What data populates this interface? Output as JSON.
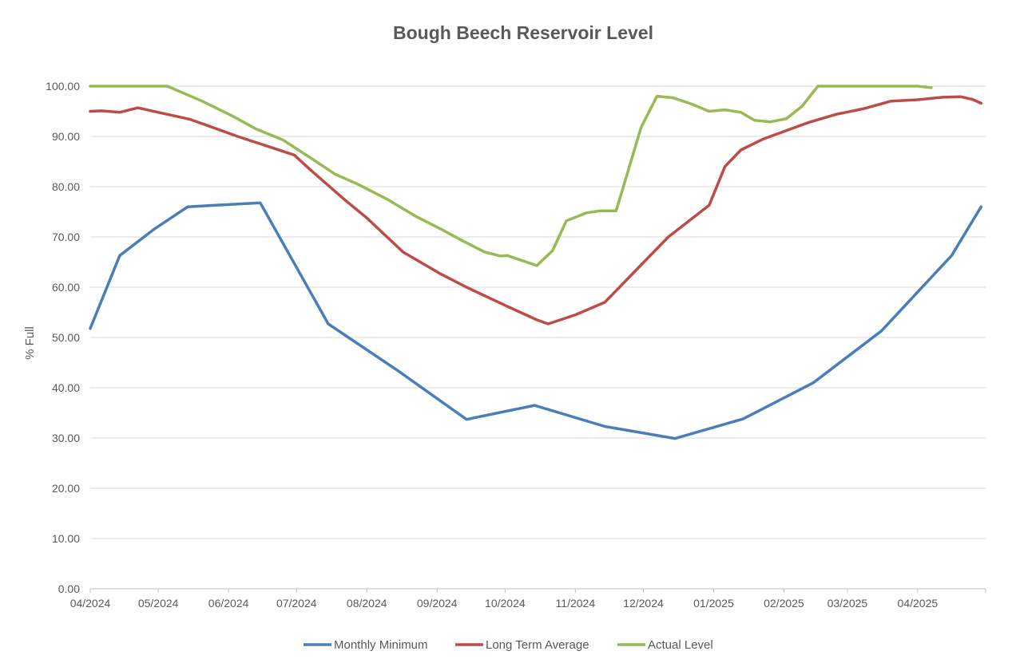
{
  "chart_data": {
    "type": "line",
    "title": "Bough Beech Reservoir Level",
    "xlabel": "",
    "ylabel": "% Full",
    "ylim": [
      0,
      100
    ],
    "yticks": [
      "0.00",
      "10.00",
      "20.00",
      "30.00",
      "40.00",
      "50.00",
      "60.00",
      "70.00",
      "80.00",
      "90.00",
      "100.00"
    ],
    "xlim": [
      "2024-04-01",
      "2025-05-01"
    ],
    "xticks": [
      {
        "label": "04/2024",
        "date": "2024-04-01"
      },
      {
        "label": "05/2024",
        "date": "2024-05-01"
      },
      {
        "label": "06/2024",
        "date": "2024-06-01"
      },
      {
        "label": "07/2024",
        "date": "2024-07-01"
      },
      {
        "label": "08/2024",
        "date": "2024-08-01"
      },
      {
        "label": "09/2024",
        "date": "2024-09-01"
      },
      {
        "label": "10/2024",
        "date": "2024-10-01"
      },
      {
        "label": "11/2024",
        "date": "2024-11-01"
      },
      {
        "label": "12/2024",
        "date": "2024-12-01"
      },
      {
        "label": "01/2025",
        "date": "2025-01-01"
      },
      {
        "label": "02/2025",
        "date": "2025-02-01"
      },
      {
        "label": "03/2025",
        "date": "2025-03-01"
      },
      {
        "label": "04/2025",
        "date": "2025-04-01"
      }
    ],
    "grid": true,
    "legend_position": "bottom",
    "series": [
      {
        "name": "Monthly Minimum",
        "color": "#4a7ebb",
        "points": [
          [
            "2024-04-01",
            51.8
          ],
          [
            "2024-04-14",
            66.3
          ],
          [
            "2024-04-29",
            71.5
          ],
          [
            "2024-05-14",
            76.0
          ],
          [
            "2024-06-15",
            76.8
          ],
          [
            "2024-07-15",
            52.7
          ],
          [
            "2024-08-15",
            43.3
          ],
          [
            "2024-09-14",
            33.7
          ],
          [
            "2024-10-14",
            36.5
          ],
          [
            "2024-11-14",
            32.3
          ],
          [
            "2024-12-15",
            29.9
          ],
          [
            "2025-01-14",
            33.8
          ],
          [
            "2025-02-14",
            41.0
          ],
          [
            "2025-03-16",
            51.3
          ],
          [
            "2025-04-16",
            66.3
          ],
          [
            "2025-04-29",
            76.0
          ]
        ]
      },
      {
        "name": "Long Term Average",
        "color": "#be4b48",
        "points": [
          [
            "2024-04-01",
            95.0
          ],
          [
            "2024-04-06",
            95.1
          ],
          [
            "2024-04-14",
            94.8
          ],
          [
            "2024-04-22",
            95.7
          ],
          [
            "2024-05-01",
            94.8
          ],
          [
            "2024-05-15",
            93.4
          ],
          [
            "2024-05-20",
            92.6
          ],
          [
            "2024-06-05",
            90.0
          ],
          [
            "2024-06-22",
            87.5
          ],
          [
            "2024-06-30",
            86.3
          ],
          [
            "2024-07-08",
            83.0
          ],
          [
            "2024-07-22",
            77.5
          ],
          [
            "2024-08-01",
            73.8
          ],
          [
            "2024-08-17",
            67.0
          ],
          [
            "2024-09-02",
            62.8
          ],
          [
            "2024-09-14",
            60.0
          ],
          [
            "2024-10-01",
            56.4
          ],
          [
            "2024-10-15",
            53.5
          ],
          [
            "2024-10-20",
            52.7
          ],
          [
            "2024-11-01",
            54.5
          ],
          [
            "2024-11-14",
            57.0
          ],
          [
            "2024-11-28",
            63.5
          ],
          [
            "2024-12-12",
            70.0
          ],
          [
            "2024-12-30",
            76.3
          ],
          [
            "2025-01-06",
            84.0
          ],
          [
            "2025-01-13",
            87.3
          ],
          [
            "2025-01-23",
            89.5
          ],
          [
            "2025-02-12",
            92.8
          ],
          [
            "2025-02-24",
            94.4
          ],
          [
            "2025-03-08",
            95.5
          ],
          [
            "2025-03-20",
            97.0
          ],
          [
            "2025-04-01",
            97.3
          ],
          [
            "2025-04-12",
            97.8
          ],
          [
            "2025-04-20",
            97.9
          ],
          [
            "2025-04-25",
            97.4
          ],
          [
            "2025-04-29",
            96.6
          ]
        ]
      },
      {
        "name": "Actual Level",
        "color": "#98b954",
        "points": [
          [
            "2024-04-01",
            100.0
          ],
          [
            "2024-05-05",
            100.0
          ],
          [
            "2024-05-20",
            97.1
          ],
          [
            "2024-06-03",
            94.0
          ],
          [
            "2024-06-13",
            91.5
          ],
          [
            "2024-06-25",
            89.3
          ],
          [
            "2024-07-08",
            85.5
          ],
          [
            "2024-07-18",
            82.5
          ],
          [
            "2024-07-28",
            80.5
          ],
          [
            "2024-08-10",
            77.5
          ],
          [
            "2024-08-23",
            74.0
          ],
          [
            "2024-09-03",
            71.5
          ],
          [
            "2024-09-12",
            69.3
          ],
          [
            "2024-09-22",
            67.0
          ],
          [
            "2024-09-29",
            66.2
          ],
          [
            "2024-10-02",
            66.3
          ],
          [
            "2024-10-15",
            64.3
          ],
          [
            "2024-10-22",
            67.3
          ],
          [
            "2024-10-28",
            73.2
          ],
          [
            "2024-11-06",
            74.8
          ],
          [
            "2024-11-12",
            75.2
          ],
          [
            "2024-11-19",
            75.2
          ],
          [
            "2024-11-30",
            91.8
          ],
          [
            "2024-12-07",
            98.0
          ],
          [
            "2024-12-14",
            97.7
          ],
          [
            "2024-12-22",
            96.5
          ],
          [
            "2024-12-30",
            95.0
          ],
          [
            "2025-01-06",
            95.3
          ],
          [
            "2025-01-13",
            94.8
          ],
          [
            "2025-01-19",
            93.2
          ],
          [
            "2025-01-26",
            92.9
          ],
          [
            "2025-02-02",
            93.5
          ],
          [
            "2025-02-09",
            96.0
          ],
          [
            "2025-02-16",
            100.0
          ],
          [
            "2025-04-01",
            100.0
          ],
          [
            "2025-04-07",
            99.7
          ]
        ]
      }
    ]
  }
}
